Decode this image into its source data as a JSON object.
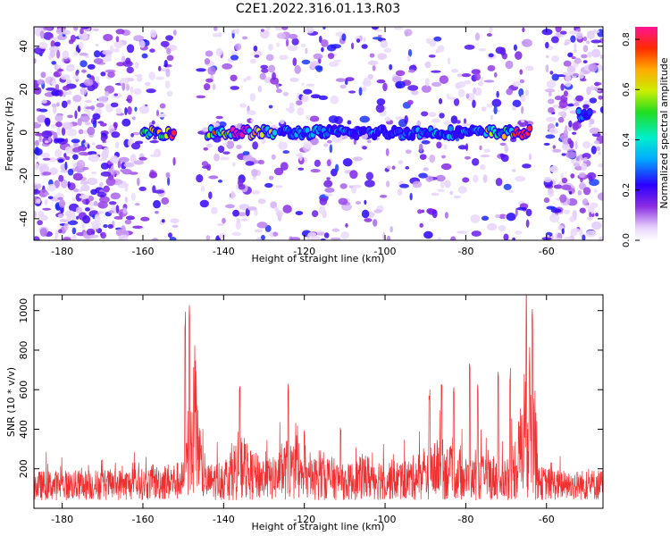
{
  "title": "C2E1.2022.316.01.13.R03",
  "chart_data": [
    {
      "type": "heatmap",
      "xlabel": "Height of straight line (km)",
      "ylabel": "Frequency (Hz)",
      "xlim": [
        -187,
        -46
      ],
      "ylim": [
        -50,
        49
      ],
      "xticks": [
        -180,
        -160,
        -140,
        -120,
        -100,
        -80,
        -60
      ],
      "yticks": [
        -40,
        -20,
        0,
        20,
        40
      ],
      "colorbar": {
        "label": "Normalized spectral amplitude",
        "range": [
          0.0,
          0.85
        ],
        "ticks": [
          "0.0",
          "0.2",
          "0.4",
          "0.6",
          "0.8"
        ]
      },
      "signal_band": {
        "frequency_hz": 0,
        "segments": [
          {
            "x": [
              -160,
              -146
            ],
            "peak_amplitude": 0.8,
            "peak_at": -151
          },
          {
            "x": [
              -144,
              -127
            ],
            "peak_amplitude": 0.85,
            "peak_at": -136
          },
          {
            "x": [
              -126,
              -105
            ],
            "peak_amplitude": 0.4
          },
          {
            "x": [
              -104,
              -76
            ],
            "peak_amplitude": 0.4
          },
          {
            "x": [
              -75,
              -62
            ],
            "peak_amplitude": 0.8,
            "peak_at": -66
          },
          {
            "x": [
              -52,
              -49
            ],
            "frequency_hz": 8,
            "peak_amplitude": 0.35
          }
        ]
      },
      "gaps_x": [
        [
          -152,
          -146
        ],
        [
          -64,
          -60
        ]
      ]
    },
    {
      "type": "line",
      "xlabel": "Height of straight line (km)",
      "ylabel": "SNR (10 * v/v)",
      "xlim": [
        -187,
        -46
      ],
      "ylim": [
        0,
        1080
      ],
      "xticks": [
        -180,
        -160,
        -140,
        -120,
        -100,
        -80,
        -60
      ],
      "yticks": [
        200,
        400,
        600,
        800,
        1000
      ],
      "series": [
        {
          "color": "#f03030",
          "baseline_x": [
            -187,
            -160,
            -155,
            -150,
            -149,
            -147,
            -145,
            -140,
            -136,
            -133,
            -128,
            -124,
            -120,
            -115,
            -110,
            -105,
            -100,
            -95,
            -90,
            -86,
            -82,
            -78,
            -74,
            -70,
            -67,
            -65,
            -63,
            -62,
            -55,
            -46
          ],
          "baseline_y": [
            120,
            130,
            150,
            160,
            330,
            600,
            140,
            170,
            280,
            200,
            170,
            260,
            150,
            200,
            140,
            190,
            170,
            160,
            220,
            260,
            180,
            170,
            190,
            180,
            300,
            650,
            600,
            140,
            120,
            130
          ],
          "peaks": [
            {
              "x": -148.5,
              "y": 1060
            },
            {
              "x": -149.5,
              "y": 1000
            },
            {
              "x": -136,
              "y": 630
            },
            {
              "x": -124,
              "y": 640
            },
            {
              "x": -120,
              "y": 400
            },
            {
              "x": -111,
              "y": 410
            },
            {
              "x": -89,
              "y": 610
            },
            {
              "x": -86,
              "y": 680
            },
            {
              "x": -83,
              "y": 620
            },
            {
              "x": -79,
              "y": 780
            },
            {
              "x": -77,
              "y": 640
            },
            {
              "x": -72,
              "y": 720
            },
            {
              "x": -69,
              "y": 720
            },
            {
              "x": -65,
              "y": 980
            },
            {
              "x": -63.5,
              "y": 1050
            }
          ]
        }
      ]
    }
  ]
}
